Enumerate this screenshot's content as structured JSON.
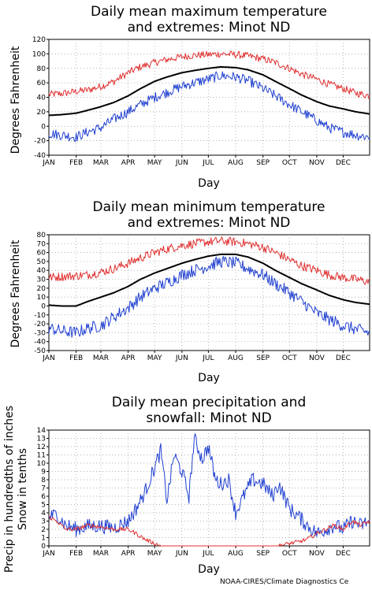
{
  "months": [
    "JAN",
    "FEB",
    "MAR",
    "APR",
    "MAY",
    "JUN",
    "JUL",
    "AUG",
    "SEP",
    "OCT",
    "NOV",
    "DEC"
  ],
  "credit": "NOAA-CIRES/Climate Diagnostics Ce",
  "colors": {
    "mean": "#000000",
    "max_extreme": "#e03030",
    "min_extreme": "#2040d0",
    "snow": "#e03030",
    "precip": "#2040d0",
    "grid": "#9a9a9a"
  },
  "chart_data": [
    {
      "type": "line",
      "title": [
        "Daily mean maximum temperature",
        "and extremes: Minot ND"
      ],
      "xlabel": "Day",
      "ylabel": "Degrees Fahrenheit",
      "xlim": [
        1,
        365
      ],
      "ylim": [
        -40,
        120
      ],
      "yticks": [
        -40,
        -20,
        0,
        20,
        40,
        60,
        80,
        100,
        120
      ],
      "grid": true,
      "series": [
        {
          "role": "max_extreme",
          "x": [
            1,
            15,
            32,
            45,
            60,
            75,
            91,
            105,
            121,
            135,
            152,
            166,
            182,
            196,
            213,
            227,
            244,
            258,
            274,
            288,
            305,
            319,
            335,
            349,
            365
          ],
          "values": [
            44,
            45,
            48,
            50,
            55,
            62,
            74,
            82,
            88,
            92,
            96,
            98,
            99,
            100,
            99,
            97,
            93,
            88,
            80,
            72,
            65,
            58,
            52,
            46,
            42
          ]
        },
        {
          "role": "mean",
          "x": [
            1,
            15,
            32,
            45,
            60,
            75,
            91,
            105,
            121,
            135,
            152,
            166,
            182,
            196,
            213,
            227,
            244,
            258,
            274,
            288,
            305,
            319,
            335,
            349,
            365
          ],
          "values": [
            15,
            16,
            18,
            22,
            27,
            33,
            42,
            52,
            62,
            68,
            74,
            77,
            80,
            82,
            81,
            78,
            71,
            62,
            52,
            43,
            34,
            28,
            24,
            20,
            17
          ]
        },
        {
          "role": "min_extreme",
          "x": [
            1,
            15,
            32,
            45,
            60,
            75,
            91,
            105,
            121,
            135,
            152,
            166,
            182,
            196,
            213,
            227,
            244,
            258,
            274,
            288,
            305,
            319,
            335,
            349,
            365
          ],
          "values": [
            -10,
            -12,
            -15,
            -8,
            -2,
            10,
            20,
            30,
            40,
            47,
            55,
            60,
            65,
            70,
            68,
            63,
            52,
            42,
            30,
            20,
            8,
            -2,
            -8,
            -12,
            -15
          ]
        }
      ]
    },
    {
      "type": "line",
      "title": [
        "Daily mean minimum temperature",
        "and extremes: Minot ND"
      ],
      "xlabel": "Day",
      "ylabel": "Degrees Fahrenheit",
      "xlim": [
        1,
        365
      ],
      "ylim": [
        -50,
        80
      ],
      "yticks": [
        -50,
        -40,
        -30,
        -20,
        -10,
        0,
        10,
        20,
        30,
        40,
        50,
        60,
        70,
        80
      ],
      "grid": true,
      "series": [
        {
          "role": "max_extreme",
          "x": [
            1,
            15,
            32,
            45,
            60,
            75,
            91,
            105,
            121,
            135,
            152,
            166,
            182,
            196,
            213,
            227,
            244,
            258,
            274,
            288,
            305,
            319,
            335,
            349,
            365
          ],
          "values": [
            32,
            33,
            34,
            35,
            38,
            42,
            48,
            54,
            60,
            64,
            68,
            70,
            72,
            73,
            72,
            70,
            66,
            60,
            52,
            45,
            40,
            35,
            32,
            30,
            27
          ]
        },
        {
          "role": "mean",
          "x": [
            1,
            15,
            32,
            45,
            60,
            75,
            91,
            105,
            121,
            135,
            152,
            166,
            182,
            196,
            213,
            227,
            244,
            258,
            274,
            288,
            305,
            319,
            335,
            349,
            365
          ],
          "values": [
            1,
            0,
            0,
            5,
            10,
            15,
            22,
            30,
            37,
            42,
            48,
            52,
            56,
            58,
            58,
            55,
            48,
            40,
            32,
            25,
            18,
            12,
            7,
            4,
            2
          ]
        },
        {
          "role": "min_extreme",
          "x": [
            1,
            15,
            32,
            45,
            60,
            75,
            91,
            105,
            121,
            135,
            152,
            166,
            182,
            196,
            213,
            227,
            244,
            258,
            274,
            288,
            305,
            319,
            335,
            349,
            365
          ],
          "values": [
            -25,
            -28,
            -30,
            -25,
            -22,
            -12,
            -2,
            10,
            20,
            26,
            35,
            40,
            45,
            50,
            48,
            42,
            35,
            25,
            15,
            5,
            -8,
            -15,
            -22,
            -26,
            -30
          ]
        }
      ]
    },
    {
      "type": "line",
      "title": [
        "Daily mean precipitation and",
        "snowfall: Minot ND"
      ],
      "xlabel": "Day",
      "ylabel": [
        "Precip in hundredths of inches",
        "Snow in tenths"
      ],
      "xlim": [
        1,
        365
      ],
      "ylim": [
        0,
        14
      ],
      "yticks": [
        0,
        1,
        2,
        3,
        4,
        5,
        6,
        7,
        8,
        9,
        10,
        11,
        12,
        13,
        14
      ],
      "grid": true,
      "series": [
        {
          "role": "precip",
          "x": [
            1,
            10,
            20,
            32,
            45,
            60,
            75,
            91,
            100,
            110,
            121,
            128,
            135,
            143,
            152,
            160,
            166,
            175,
            182,
            190,
            196,
            205,
            213,
            222,
            232,
            244,
            255,
            262,
            274,
            285,
            294,
            305,
            315,
            325,
            335,
            345,
            355,
            365
          ],
          "values": [
            3.5,
            3.8,
            2.5,
            2.0,
            2.4,
            2.4,
            2.2,
            3.0,
            4.5,
            6.5,
            9.5,
            11.5,
            5.5,
            11.0,
            9.0,
            6.0,
            13.0,
            10.5,
            12.0,
            8.0,
            7.5,
            8.0,
            4.0,
            6.0,
            8.0,
            7.5,
            6.0,
            7.5,
            4.5,
            3.5,
            2.5,
            1.5,
            2.0,
            2.5,
            2.0,
            3.0,
            2.5,
            3.0
          ]
        },
        {
          "role": "snow",
          "x": [
            1,
            10,
            20,
            32,
            45,
            60,
            75,
            91,
            100,
            110,
            121,
            128,
            135,
            152,
            182,
            213,
            244,
            262,
            274,
            285,
            294,
            305,
            315,
            325,
            335,
            345,
            355,
            365
          ],
          "values": [
            3.5,
            3.0,
            2.0,
            2.0,
            2.5,
            2.3,
            2.0,
            2.0,
            1.5,
            0.8,
            0.3,
            0,
            0,
            0,
            0,
            0,
            0,
            0,
            0.3,
            0.5,
            0.8,
            1.5,
            2.0,
            2.5,
            2.0,
            3.0,
            2.5,
            3.0
          ]
        }
      ]
    }
  ]
}
